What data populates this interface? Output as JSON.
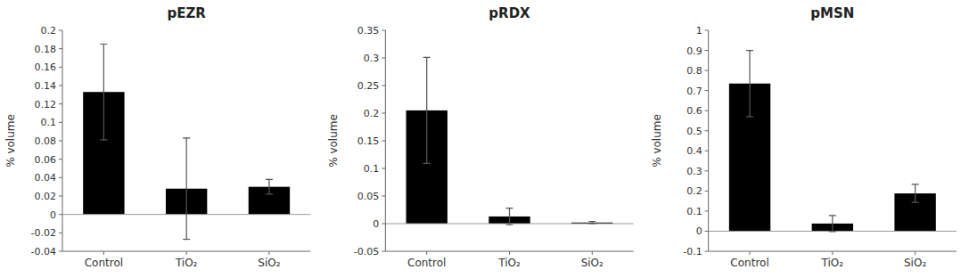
{
  "chart_data": [
    {
      "type": "bar",
      "title": "pEZR",
      "categories": [
        "Control",
        "TiO₂",
        "SiO₂"
      ],
      "values": [
        0.133,
        0.028,
        0.03
      ],
      "errors": [
        0.052,
        0.055,
        0.008
      ],
      "color": "#000000",
      "ylabel": "% volume",
      "ylim": [
        -0.04,
        0.2
      ],
      "yticks": [
        -0.04,
        -0.02,
        0,
        0.02,
        0.04,
        0.06,
        0.08,
        0.1,
        0.12,
        0.14,
        0.16,
        0.18,
        0.2
      ]
    },
    {
      "type": "bar",
      "title": "pRDX",
      "categories": [
        "Control",
        "TiO₂",
        "SiO₂"
      ],
      "values": [
        0.205,
        0.013,
        0.002
      ],
      "errors": [
        0.096,
        0.015,
        0.002
      ],
      "color": "#000000",
      "ylabel": "% volume",
      "ylim": [
        -0.05,
        0.35
      ],
      "yticks": [
        -0.05,
        0,
        0.05,
        0.1,
        0.15,
        0.2,
        0.25,
        0.3,
        0.35
      ]
    },
    {
      "type": "bar",
      "title": "pMSN",
      "categories": [
        "Control",
        "TiO₂",
        "SiO₂"
      ],
      "values": [
        0.735,
        0.038,
        0.188
      ],
      "errors": [
        0.165,
        0.04,
        0.045
      ],
      "color": "#000000",
      "ylabel": "% volume",
      "ylim": [
        -0.1,
        1
      ],
      "yticks": [
        -0.1,
        0,
        0.1,
        0.2,
        0.3,
        0.4,
        0.5,
        0.6,
        0.7,
        0.8,
        0.9,
        1
      ]
    }
  ]
}
